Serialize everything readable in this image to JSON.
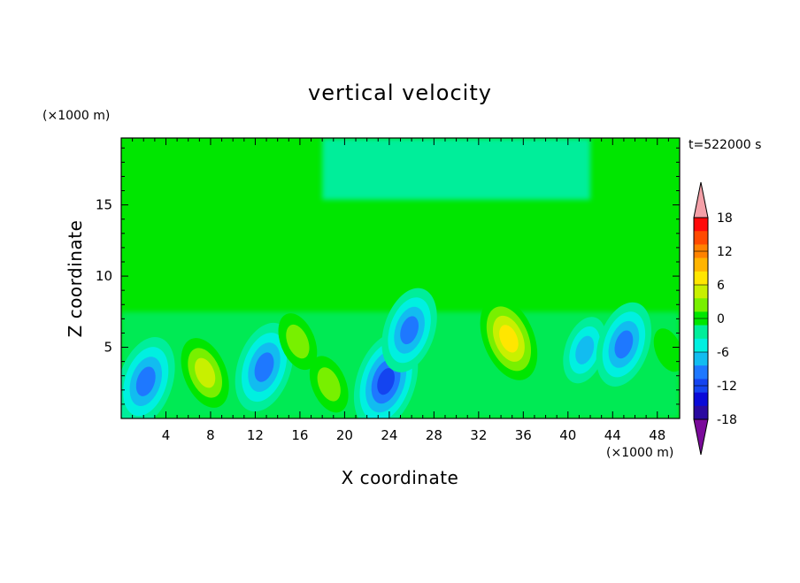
{
  "chart_data": {
    "type": "heatmap",
    "title": "vertical velocity",
    "xlabel": "X coordinate",
    "ylabel": "Z coordinate",
    "x_unit": "(×1000 m)",
    "y_unit": "(×1000 m)",
    "time_label": "t=522000 s",
    "xlim": [
      0,
      50
    ],
    "ylim": [
      0,
      19.7
    ],
    "x_ticks": [
      4,
      8,
      12,
      16,
      20,
      24,
      28,
      32,
      36,
      40,
      44,
      48
    ],
    "y_ticks": [
      5,
      10,
      15
    ],
    "colorbar": {
      "tick_labels": [
        18,
        12,
        6,
        0,
        -6,
        -12,
        -18
      ],
      "levels": [
        -21,
        -18,
        -15,
        -12,
        -9,
        -6,
        -3,
        0,
        3,
        6,
        9,
        12,
        15,
        18,
        21
      ],
      "colors": [
        "#7a0a9a",
        "#2a0aa0",
        "#0a0ad8",
        "#1444f0",
        "#1e78ff",
        "#12bcf0",
        "#00f0e0",
        "#00ee9a",
        "#00e600",
        "#78f000",
        "#c8f000",
        "#ffe600",
        "#ffb400",
        "#ff8200",
        "#ff4a00",
        "#ff0a0a",
        "#f4a0a8"
      ],
      "over_color": "#f4a0a8",
      "under_color": "#7a0a9a"
    },
    "features": [
      {
        "x": 2.2,
        "z": 2.6,
        "value": -13
      },
      {
        "x": 7.5,
        "z": 3.2,
        "value": 9
      },
      {
        "x": 12.8,
        "z": 3.6,
        "value": -13
      },
      {
        "x": 15.8,
        "z": 5.4,
        "value": 6
      },
      {
        "x": 18.6,
        "z": 2.4,
        "value": 6
      },
      {
        "x": 23.7,
        "z": 2.6,
        "value": -15
      },
      {
        "x": 25.8,
        "z": 6.2,
        "value": -12
      },
      {
        "x": 32.0,
        "z": 11.0,
        "value": 3
      },
      {
        "x": 34.7,
        "z": 5.6,
        "value": 12
      },
      {
        "x": 41.5,
        "z": 4.8,
        "value": -8
      },
      {
        "x": 45.0,
        "z": 5.2,
        "value": -12
      },
      {
        "x": 49.0,
        "z": 4.8,
        "value": 3
      }
    ]
  }
}
